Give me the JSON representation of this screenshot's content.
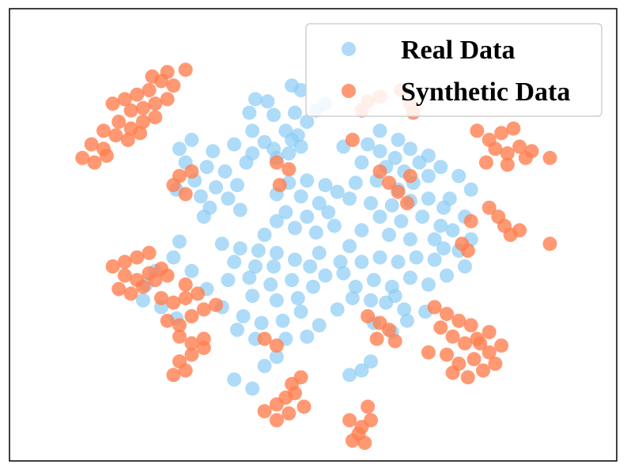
{
  "chart_data": {
    "type": "scatter",
    "xlim": [
      0,
      100
    ],
    "ylim": [
      0,
      100
    ],
    "grid": false,
    "legend": "top-right",
    "series": [
      {
        "name": "Real Data",
        "color": "#8fcdf5",
        "points": [
          [
            46.5,
            83
          ],
          [
            48,
            82
          ],
          [
            40.5,
            80
          ],
          [
            42.5,
            79.5
          ],
          [
            39.5,
            77
          ],
          [
            43.5,
            76.5
          ],
          [
            47,
            77
          ],
          [
            50.5,
            77.5
          ],
          [
            52,
            79
          ],
          [
            49,
            75
          ],
          [
            40,
            73
          ],
          [
            45.5,
            73
          ],
          [
            47.5,
            72
          ],
          [
            42,
            70.5
          ],
          [
            43.5,
            69
          ],
          [
            46,
            68
          ],
          [
            48,
            69.5
          ],
          [
            44,
            67
          ],
          [
            46.5,
            71
          ],
          [
            55,
            69.5
          ],
          [
            30,
            71
          ],
          [
            28,
            69
          ],
          [
            33.5,
            68.5
          ],
          [
            37,
            70
          ],
          [
            40,
            68
          ],
          [
            29,
            66
          ],
          [
            32.5,
            65
          ],
          [
            35.5,
            64
          ],
          [
            39,
            66
          ],
          [
            30.5,
            62
          ],
          [
            34,
            60.5
          ],
          [
            37.5,
            61
          ],
          [
            27.5,
            60
          ],
          [
            31.5,
            58.5
          ],
          [
            36,
            58
          ],
          [
            33,
            56
          ],
          [
            38,
            55.5
          ],
          [
            32,
            54
          ],
          [
            46,
            61.5
          ],
          [
            49,
            62
          ],
          [
            52,
            61
          ],
          [
            44,
            59
          ],
          [
            48,
            58.5
          ],
          [
            51,
            57
          ],
          [
            54,
            59.5
          ],
          [
            45.5,
            55
          ],
          [
            49,
            54
          ],
          [
            52.5,
            55
          ],
          [
            47,
            51.5
          ],
          [
            50.5,
            50.5
          ],
          [
            44,
            53
          ],
          [
            53.5,
            52
          ],
          [
            42,
            50
          ],
          [
            59,
            70
          ],
          [
            61,
            68.5
          ],
          [
            63.5,
            67
          ],
          [
            66,
            69
          ],
          [
            58,
            66
          ],
          [
            62,
            65
          ],
          [
            65,
            64
          ],
          [
            67.5,
            66
          ],
          [
            57,
            61.5
          ],
          [
            60.5,
            62
          ],
          [
            64,
            60
          ],
          [
            66.5,
            61.5
          ],
          [
            69,
            63
          ],
          [
            56,
            58
          ],
          [
            59.5,
            57
          ],
          [
            63,
            56.5
          ],
          [
            66,
            57.5
          ],
          [
            69,
            58
          ],
          [
            71.5,
            56
          ],
          [
            61,
            54
          ],
          [
            64.5,
            53
          ],
          [
            68,
            54
          ],
          [
            71,
            52
          ],
          [
            58,
            51
          ],
          [
            62.5,
            50
          ],
          [
            66,
            49
          ],
          [
            70,
            49
          ],
          [
            73,
            51
          ],
          [
            75,
            54
          ],
          [
            72.5,
            58
          ],
          [
            76,
            60
          ],
          [
            74,
            63
          ],
          [
            71,
            65
          ],
          [
            69,
            67.5
          ],
          [
            64,
            71
          ],
          [
            61,
            73
          ],
          [
            35,
            48
          ],
          [
            38,
            47
          ],
          [
            41,
            46.5
          ],
          [
            44,
            46
          ],
          [
            37,
            44
          ],
          [
            40.5,
            43
          ],
          [
            43.5,
            43
          ],
          [
            47,
            44.5
          ],
          [
            36,
            40
          ],
          [
            39.5,
            40.5
          ],
          [
            43,
            39
          ],
          [
            46.5,
            40
          ],
          [
            49.5,
            43
          ],
          [
            51,
            46
          ],
          [
            40,
            36.5
          ],
          [
            44,
            35.5
          ],
          [
            47.5,
            36
          ],
          [
            50,
            38.5
          ],
          [
            52,
            41
          ],
          [
            54.5,
            44
          ],
          [
            56,
            47.5
          ],
          [
            55,
            41.5
          ],
          [
            58,
            44
          ],
          [
            61,
            45
          ],
          [
            64,
            44
          ],
          [
            67,
            45
          ],
          [
            70,
            44.5
          ],
          [
            57,
            38.5
          ],
          [
            60,
            40
          ],
          [
            63,
            38.5
          ],
          [
            66,
            40.5
          ],
          [
            69,
            39
          ],
          [
            72,
            41
          ],
          [
            75,
            43
          ],
          [
            62,
            35
          ],
          [
            65,
            33.5
          ],
          [
            68.5,
            33
          ],
          [
            63.5,
            36.5
          ],
          [
            59.5,
            35.5
          ],
          [
            74,
            46.5
          ],
          [
            76,
            49
          ],
          [
            71.5,
            47
          ],
          [
            30,
            42
          ],
          [
            32.5,
            38
          ],
          [
            35,
            34
          ],
          [
            38.5,
            32
          ],
          [
            41.5,
            30.5
          ],
          [
            45,
            31
          ],
          [
            48,
            33
          ],
          [
            51,
            30
          ],
          [
            49,
            27.5
          ],
          [
            45.5,
            27
          ],
          [
            40.5,
            27
          ],
          [
            37.5,
            29
          ],
          [
            54,
            33.5
          ],
          [
            56.5,
            36
          ],
          [
            65.5,
            31
          ],
          [
            63,
            28.5
          ],
          [
            60,
            30.5
          ],
          [
            56,
            19
          ],
          [
            58,
            20
          ],
          [
            59.5,
            22
          ],
          [
            28,
            48.5
          ],
          [
            27,
            45
          ],
          [
            24,
            42
          ],
          [
            22.5,
            39
          ],
          [
            22,
            35.5
          ],
          [
            25,
            34
          ],
          [
            27.5,
            31.5
          ],
          [
            37,
            18
          ],
          [
            40,
            16
          ],
          [
            42,
            21
          ],
          [
            44,
            23
          ]
        ]
      },
      {
        "name": "Synthetic Data",
        "color": "#ff7f50",
        "points": [
          [
            17,
            79
          ],
          [
            19,
            80
          ],
          [
            21,
            81
          ],
          [
            23,
            82
          ],
          [
            20,
            77.5
          ],
          [
            22,
            78
          ],
          [
            24,
            79
          ],
          [
            26,
            80
          ],
          [
            18,
            75
          ],
          [
            20,
            73.5
          ],
          [
            22,
            75
          ],
          [
            24,
            76
          ],
          [
            15.5,
            73
          ],
          [
            17.5,
            72
          ],
          [
            19.5,
            71
          ],
          [
            21.5,
            72.5
          ],
          [
            13.5,
            70
          ],
          [
            15.5,
            69
          ],
          [
            12,
            67
          ],
          [
            14,
            66
          ],
          [
            16,
            67.5
          ],
          [
            25,
            84
          ],
          [
            27,
            83
          ],
          [
            23.5,
            85
          ],
          [
            26,
            86
          ],
          [
            29,
            86.5
          ],
          [
            28,
            63
          ],
          [
            30,
            64
          ],
          [
            27,
            61
          ],
          [
            29,
            59
          ],
          [
            17,
            43
          ],
          [
            19,
            44
          ],
          [
            21,
            45
          ],
          [
            23,
            46
          ],
          [
            19,
            41
          ],
          [
            21,
            40
          ],
          [
            23,
            41.5
          ],
          [
            25,
            42.5
          ],
          [
            18,
            38
          ],
          [
            20,
            37
          ],
          [
            22,
            38.5
          ],
          [
            24,
            40
          ],
          [
            26,
            41
          ],
          [
            29,
            39
          ],
          [
            25,
            36
          ],
          [
            27,
            35
          ],
          [
            29,
            36
          ],
          [
            31,
            37
          ],
          [
            26,
            31
          ],
          [
            28,
            30
          ],
          [
            30,
            32
          ],
          [
            32,
            33.5
          ],
          [
            34,
            34.5
          ],
          [
            28,
            27.5
          ],
          [
            30,
            26
          ],
          [
            32,
            27
          ],
          [
            28,
            22
          ],
          [
            30,
            23.5
          ],
          [
            32,
            25
          ],
          [
            27,
            19
          ],
          [
            29,
            20
          ],
          [
            44,
            66
          ],
          [
            46,
            64.5
          ],
          [
            44.5,
            61
          ],
          [
            59,
            79.5
          ],
          [
            61,
            80.5
          ],
          [
            58,
            77.5
          ],
          [
            64.5,
            82
          ],
          [
            66,
            79
          ],
          [
            66.5,
            77
          ],
          [
            56.5,
            71
          ],
          [
            61,
            64
          ],
          [
            62.5,
            61.5
          ],
          [
            64,
            59.5
          ],
          [
            65.5,
            57
          ],
          [
            66,
            63
          ],
          [
            77,
            73
          ],
          [
            79,
            71
          ],
          [
            81,
            72.5
          ],
          [
            83,
            73.5
          ],
          [
            80,
            69
          ],
          [
            82,
            68
          ],
          [
            84,
            69.5
          ],
          [
            86,
            68.5
          ],
          [
            78.5,
            66
          ],
          [
            82,
            65.5
          ],
          [
            85,
            67
          ],
          [
            89,
            67
          ],
          [
            79,
            56
          ],
          [
            80.5,
            54
          ],
          [
            81.5,
            52
          ],
          [
            82.5,
            50
          ],
          [
            84,
            51
          ],
          [
            89,
            48
          ],
          [
            76,
            53
          ],
          [
            74.5,
            48
          ],
          [
            75.5,
            46.5
          ],
          [
            59,
            32
          ],
          [
            61,
            30.5
          ],
          [
            62.5,
            29
          ],
          [
            60.5,
            27
          ],
          [
            63.5,
            26.5
          ],
          [
            42,
            27
          ],
          [
            44,
            25.5
          ],
          [
            70,
            34
          ],
          [
            72,
            32.5
          ],
          [
            74,
            31
          ],
          [
            76,
            30
          ],
          [
            71,
            29.5
          ],
          [
            73,
            27.5
          ],
          [
            75,
            26
          ],
          [
            77,
            27
          ],
          [
            79,
            28.5
          ],
          [
            69,
            24
          ],
          [
            72,
            23.5
          ],
          [
            74,
            21.5
          ],
          [
            76.5,
            22.5
          ],
          [
            79,
            24
          ],
          [
            81,
            25.5
          ],
          [
            73,
            19.5
          ],
          [
            75.5,
            18.5
          ],
          [
            78,
            20
          ],
          [
            80,
            21.5
          ],
          [
            77.5,
            26
          ],
          [
            42,
            11
          ],
          [
            44,
            12.5
          ],
          [
            45.5,
            14
          ],
          [
            47,
            15
          ],
          [
            46,
            10.5
          ],
          [
            44,
            9
          ],
          [
            48.5,
            12
          ],
          [
            46.5,
            17
          ],
          [
            48,
            18.5
          ],
          [
            56,
            9
          ],
          [
            58,
            7.5
          ],
          [
            59.5,
            9
          ],
          [
            57.5,
            6
          ],
          [
            56.5,
            4.5
          ],
          [
            58.5,
            4
          ],
          [
            59,
            12
          ]
        ]
      }
    ]
  }
}
